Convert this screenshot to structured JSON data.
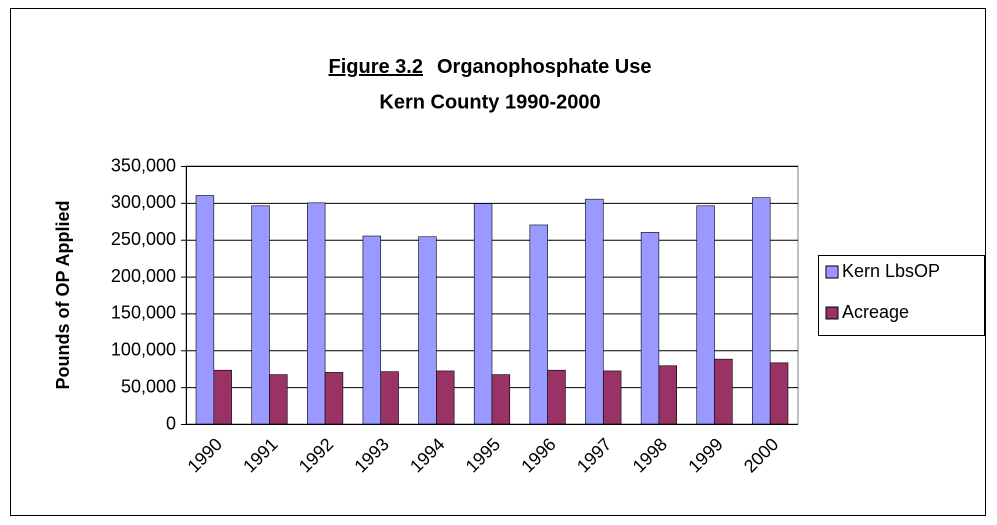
{
  "chart_data": {
    "type": "bar",
    "title": [
      "Figure 3.2",
      "Organophosphate Use",
      "Kern County 1990-2000"
    ],
    "y_label": "Pounds of OP Applied",
    "categories": [
      "1990",
      "1991",
      "1992",
      "1993",
      "1994",
      "1995",
      "1996",
      "1997",
      "1998",
      "1999",
      "2000"
    ],
    "series": [
      {
        "name": "Kern LbsOP",
        "color": "#9999ff",
        "values": [
          310000,
          296000,
          300000,
          255000,
          254000,
          299000,
          270000,
          305000,
          260000,
          296000,
          307000
        ]
      },
      {
        "name": "Acreage",
        "color": "#993366",
        "values": [
          73000,
          67000,
          70000,
          71000,
          72000,
          67000,
          73000,
          72000,
          79000,
          88000,
          83000
        ]
      }
    ],
    "ylim": [
      0,
      350000
    ],
    "yticks": [
      0,
      {
        "value": 50000,
        "label": "50,000"
      },
      {
        "value": 100000,
        "label": "100,000"
      },
      {
        "value": 150000,
        "label": "150,000"
      },
      {
        "value": 200000,
        "label": "200,000"
      },
      {
        "value": 250000,
        "label": "250,000"
      },
      {
        "value": 300000,
        "label": "300,000"
      },
      {
        "value": 350000,
        "label": "350,000"
      }
    ],
    "grid": true,
    "legend": "right"
  }
}
